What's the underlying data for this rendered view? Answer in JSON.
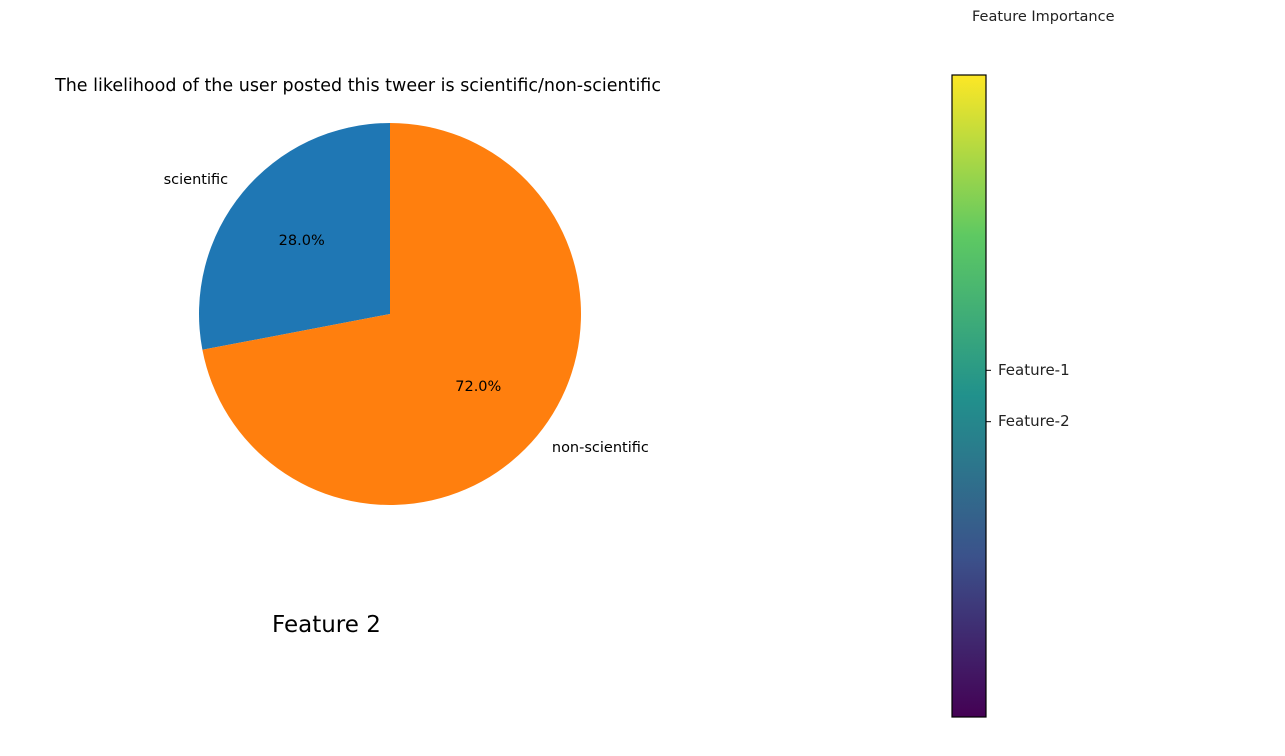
{
  "chart_data": [
    {
      "type": "pie",
      "title": "The likelihood of the user posted  this tweer is scientific/non-scientific",
      "slices": [
        {
          "label": "scientific",
          "value": 28.0,
          "pct_label": "28.0%",
          "color": "#1f77b4"
        },
        {
          "label": "non-scientific",
          "value": 72.0,
          "pct_label": "72.0%",
          "color": "#ff7f0e"
        }
      ],
      "start_angle_deg": 90,
      "direction": "counterclockwise"
    },
    {
      "type": "colorbar",
      "title": "Feature Importance",
      "colormap": "viridis",
      "colormap_stops": [
        "#440154",
        "#3b528b",
        "#21918c",
        "#5ec962",
        "#fde725"
      ],
      "ticks": [
        {
          "label": "Feature-1",
          "value": 0.54
        },
        {
          "label": "Feature-2",
          "value": 0.46
        }
      ],
      "range": [
        0,
        1
      ]
    }
  ],
  "caption": "Feature 2"
}
